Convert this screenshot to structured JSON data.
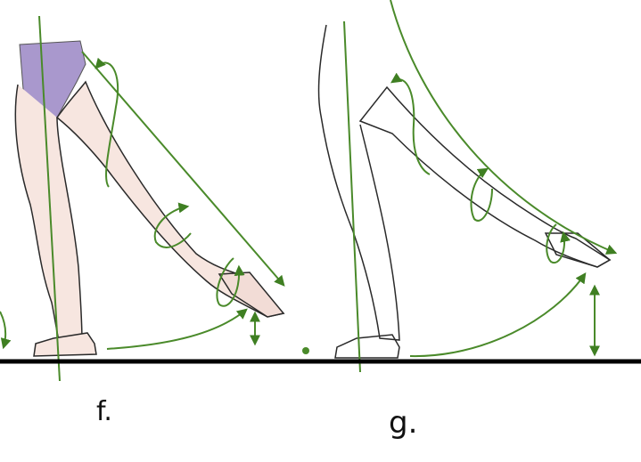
{
  "figures": [
    {
      "label": "f."
    },
    {
      "label": "g."
    }
  ],
  "colors": {
    "annotation": "#4a8a2a",
    "arrow_head": "#3f7f22",
    "outline": "#2a2a2a",
    "skin": "#f7e6e0",
    "leotard": "#9a86c4",
    "ground": "#000000"
  }
}
